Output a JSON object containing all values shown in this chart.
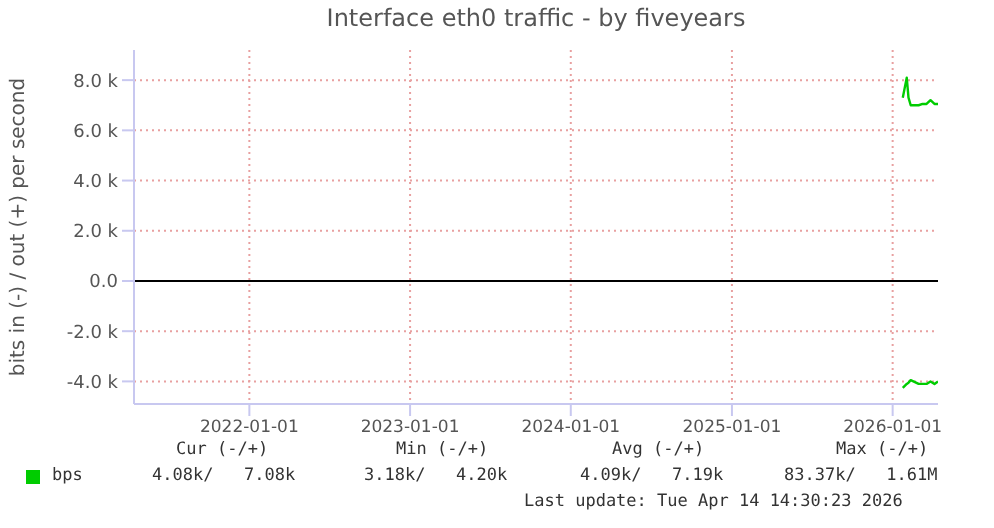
{
  "chart_data": {
    "type": "line",
    "title": "Interface eth0 traffic - by fiveyears",
    "ylabel": "bits in (-) / out (+) per second",
    "x": [
      "2026-01-24",
      "2026-02-02",
      "2026-02-06",
      "2026-02-11",
      "2026-03-01",
      "2026-03-10",
      "2026-03-19",
      "2026-03-28",
      "2026-04-06",
      "2026-04-14"
    ],
    "series": [
      {
        "name": "bps",
        "color": "#00cc00",
        "values": [
          7300,
          8100,
          7300,
          7000,
          7000,
          7050,
          7050,
          7200,
          7050,
          7050
        ]
      },
      {
        "color": "#00cc00",
        "values": [
          -4260,
          -4100,
          -4050,
          -3950,
          -4100,
          -4100,
          -4100,
          -4000,
          -4100,
          -4000
        ]
      }
    ],
    "xlim": [
      "2021-04-14",
      "2026-04-14"
    ],
    "xticks": [
      "2022-01-01",
      "2023-01-01",
      "2024-01-01",
      "2025-01-01",
      "2026-01-01"
    ],
    "ylim": [
      -4900,
      9200
    ],
    "yticks": [
      {
        "value": -4000,
        "label": "-4.0 k"
      },
      {
        "value": -2000,
        "label": "-2.0 k"
      },
      {
        "value": 0,
        "label": "0.0"
      },
      {
        "value": 2000,
        "label": "2.0 k"
      },
      {
        "value": 4000,
        "label": "4.0 k"
      },
      {
        "value": 6000,
        "label": "6.0 k"
      },
      {
        "value": 8000,
        "label": "8.0 k"
      }
    ],
    "ref_lines": [
      {
        "axis": "y",
        "value": 0,
        "color": "#000000"
      }
    ],
    "grid": true,
    "legend": "bottom left",
    "marker": "none",
    "line_style": "solid",
    "annotations": [
      "Cur (-/+)",
      "Min (-/+)",
      "Avg (-/+)",
      "Max (-/+)",
      "4.08k/   7.08k",
      "3.18k/   4.20k",
      "4.09k/   7.19k",
      "83.37k/   1.61M",
      "Last update: Tue Apr 14 14:30:23 2026"
    ]
  }
}
